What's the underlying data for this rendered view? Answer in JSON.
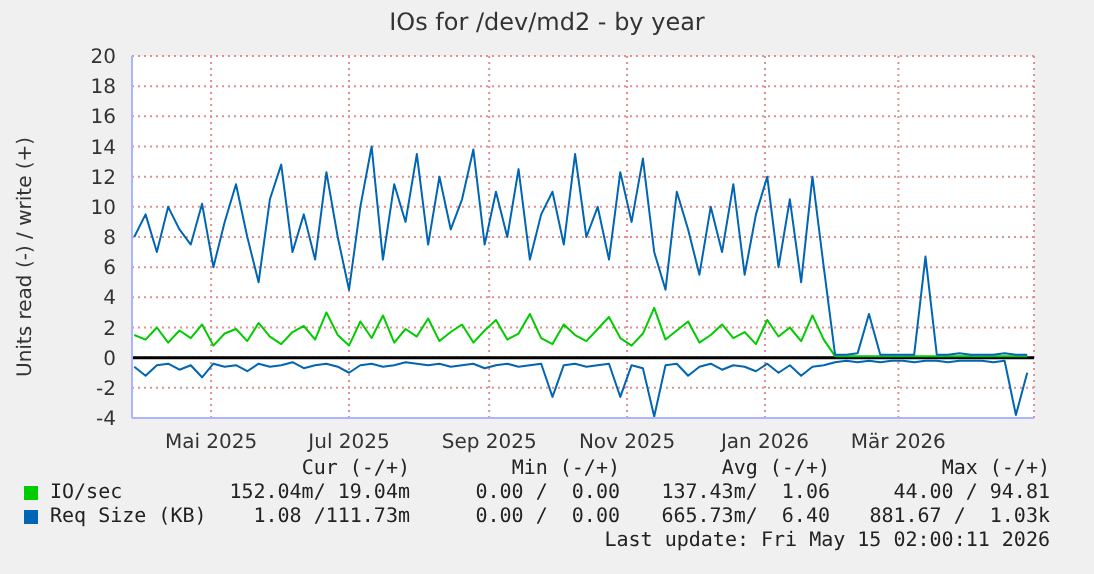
{
  "chart_data": {
    "type": "line",
    "title": "IOs for /dev/md2 - by year",
    "ylabel": "Units read (-) / write (+)",
    "x": [
      "2025-03-28",
      "2025-04-02",
      "2025-04-07",
      "2025-04-12",
      "2025-04-17",
      "2025-04-22",
      "2025-04-27",
      "2025-05-02",
      "2025-05-07",
      "2025-05-12",
      "2025-05-17",
      "2025-05-22",
      "2025-05-27",
      "2025-06-01",
      "2025-06-06",
      "2025-06-11",
      "2025-06-16",
      "2025-06-21",
      "2025-06-26",
      "2025-07-01",
      "2025-07-06",
      "2025-07-11",
      "2025-07-16",
      "2025-07-21",
      "2025-07-26",
      "2025-07-31",
      "2025-08-05",
      "2025-08-10",
      "2025-08-15",
      "2025-08-20",
      "2025-08-25",
      "2025-08-30",
      "2025-09-04",
      "2025-09-09",
      "2025-09-14",
      "2025-09-19",
      "2025-09-24",
      "2025-09-29",
      "2025-10-04",
      "2025-10-09",
      "2025-10-14",
      "2025-10-19",
      "2025-10-24",
      "2025-10-29",
      "2025-11-03",
      "2025-11-08",
      "2025-11-13",
      "2025-11-18",
      "2025-11-23",
      "2025-11-28",
      "2025-12-03",
      "2025-12-08",
      "2025-12-13",
      "2025-12-18",
      "2025-12-23",
      "2025-12-28",
      "2026-01-02",
      "2026-01-07",
      "2026-01-12",
      "2026-01-17",
      "2026-01-22",
      "2026-01-27",
      "2026-02-01",
      "2026-02-06",
      "2026-02-11",
      "2026-02-16",
      "2026-02-21",
      "2026-02-26",
      "2026-03-03",
      "2026-03-08",
      "2026-03-13",
      "2026-03-18",
      "2026-03-23",
      "2026-03-28",
      "2026-04-02",
      "2026-04-07",
      "2026-04-12",
      "2026-04-17",
      "2026-04-22",
      "2026-04-27"
    ],
    "series": [
      {
        "name": "IO/sec",
        "color": "#00cc00",
        "values": [
          1.5,
          1.2,
          2,
          1,
          1.8,
          1.3,
          2.2,
          0.8,
          1.6,
          1.9,
          1.1,
          2.3,
          1.4,
          0.9,
          1.7,
          2.1,
          1.2,
          3,
          1.5,
          0.8,
          2.4,
          1.3,
          2.8,
          1,
          1.9,
          1.4,
          2.6,
          1.1,
          1.7,
          2.2,
          1,
          1.8,
          2.5,
          1.2,
          1.6,
          2.9,
          1.3,
          0.9,
          2.2,
          1.5,
          1.1,
          1.9,
          2.7,
          1.3,
          0.8,
          1.6,
          3.3,
          1.2,
          1.8,
          2.4,
          1,
          1.5,
          2.2,
          1.3,
          1.7,
          0.9,
          2.5,
          1.4,
          2,
          1.1,
          2.8,
          1.2,
          0.1,
          0.1,
          0.1,
          0.1,
          0.1,
          0.1,
          0.1,
          0.1,
          0.1,
          0.1,
          0.1,
          0.1,
          0.1,
          0.1,
          0.1,
          0.1,
          0.1,
          0.1
        ]
      },
      {
        "name": "Req Size (KB)",
        "color": "#0066b3",
        "values": [
          8,
          9.5,
          7,
          10,
          8.5,
          7.5,
          10.2,
          6,
          9,
          11.5,
          8,
          5,
          10.5,
          12.8,
          7,
          9.5,
          6.5,
          12.3,
          8,
          4.5,
          10,
          14,
          6.5,
          11.5,
          9,
          13.5,
          7.5,
          12,
          8.5,
          10.5,
          13.8,
          7.5,
          11,
          8,
          12.5,
          6.5,
          9.5,
          11,
          7.5,
          13.5,
          8,
          10,
          6.5,
          12.3,
          9,
          13.2,
          7,
          4.5,
          11,
          8.5,
          5.5,
          10,
          7,
          11.5,
          5.5,
          9.5,
          12,
          6,
          10.5,
          5,
          12,
          6,
          0.2,
          0.2,
          0.3,
          2.9,
          0.2,
          0.2,
          0.2,
          0.2,
          6.7,
          0.2,
          0.2,
          0.3,
          0.2,
          0.2,
          0.2,
          0.3,
          0.2,
          0.2
        ]
      },
      {
        "color": "#0066b3",
        "values": [
          -0.6,
          -1.2,
          -0.5,
          -0.4,
          -0.8,
          -0.5,
          -1.3,
          -0.4,
          -0.6,
          -0.5,
          -0.9,
          -0.4,
          -0.6,
          -0.5,
          -0.3,
          -0.7,
          -0.5,
          -0.4,
          -0.6,
          -1,
          -0.5,
          -0.4,
          -0.6,
          -0.5,
          -0.3,
          -0.4,
          -0.5,
          -0.4,
          -0.6,
          -0.5,
          -0.4,
          -0.7,
          -0.5,
          -0.4,
          -0.6,
          -0.5,
          -0.4,
          -2.6,
          -0.5,
          -0.4,
          -0.6,
          -0.5,
          -0.4,
          -2.6,
          -0.5,
          -0.7,
          -3.9,
          -0.5,
          -0.4,
          -1.2,
          -0.6,
          -0.4,
          -0.8,
          -0.5,
          -0.6,
          -0.9,
          -0.4,
          -1,
          -0.5,
          -1.2,
          -0.6,
          -0.5,
          -0.3,
          -0.2,
          -0.3,
          -0.2,
          -0.3,
          -0.2,
          -0.2,
          -0.3,
          -0.2,
          -0.2,
          -0.3,
          -0.2,
          -0.2,
          -0.2,
          -0.3,
          -0.2,
          -3.8,
          -1
        ]
      }
    ],
    "xlim": [
      "2025-03-27",
      "2026-04-30"
    ],
    "xticks": [
      {
        "value": "2025-05-01",
        "label": "Mai 2025"
      },
      {
        "value": "2025-07-01",
        "label": "Jul 2025"
      },
      {
        "value": "2025-09-01",
        "label": "Sep 2025"
      },
      {
        "value": "2025-11-01",
        "label": "Nov 2025"
      },
      {
        "value": "2026-01-01",
        "label": "Jan 2026"
      },
      {
        "value": "2026-03-01",
        "label": "Mär 2026"
      }
    ],
    "ylim": [
      -4,
      20
    ],
    "yticks": [
      -4,
      -2,
      0,
      2,
      4,
      6,
      8,
      10,
      12,
      14,
      16,
      18,
      20
    ],
    "ref_lines": [
      {
        "axis": "y",
        "value": 0,
        "color": "#000000"
      }
    ],
    "grid": true,
    "legend": "bottom",
    "marker": "none",
    "line_style": "solid",
    "annotations": [
      "Cur (-/+)",
      "Min (-/+)",
      "Avg (-/+)",
      "Max (-/+)",
      "152.04m/ 19.04m",
      "0.00 /  0.00",
      "137.43m/  1.06",
      "44.00 / 94.81",
      "1.08 /111.73m",
      "0.00 /  0.00",
      "665.73m/  6.40",
      "881.67 /  1.03k",
      "Last update: Fri May 15 02:00:11 2026"
    ]
  }
}
